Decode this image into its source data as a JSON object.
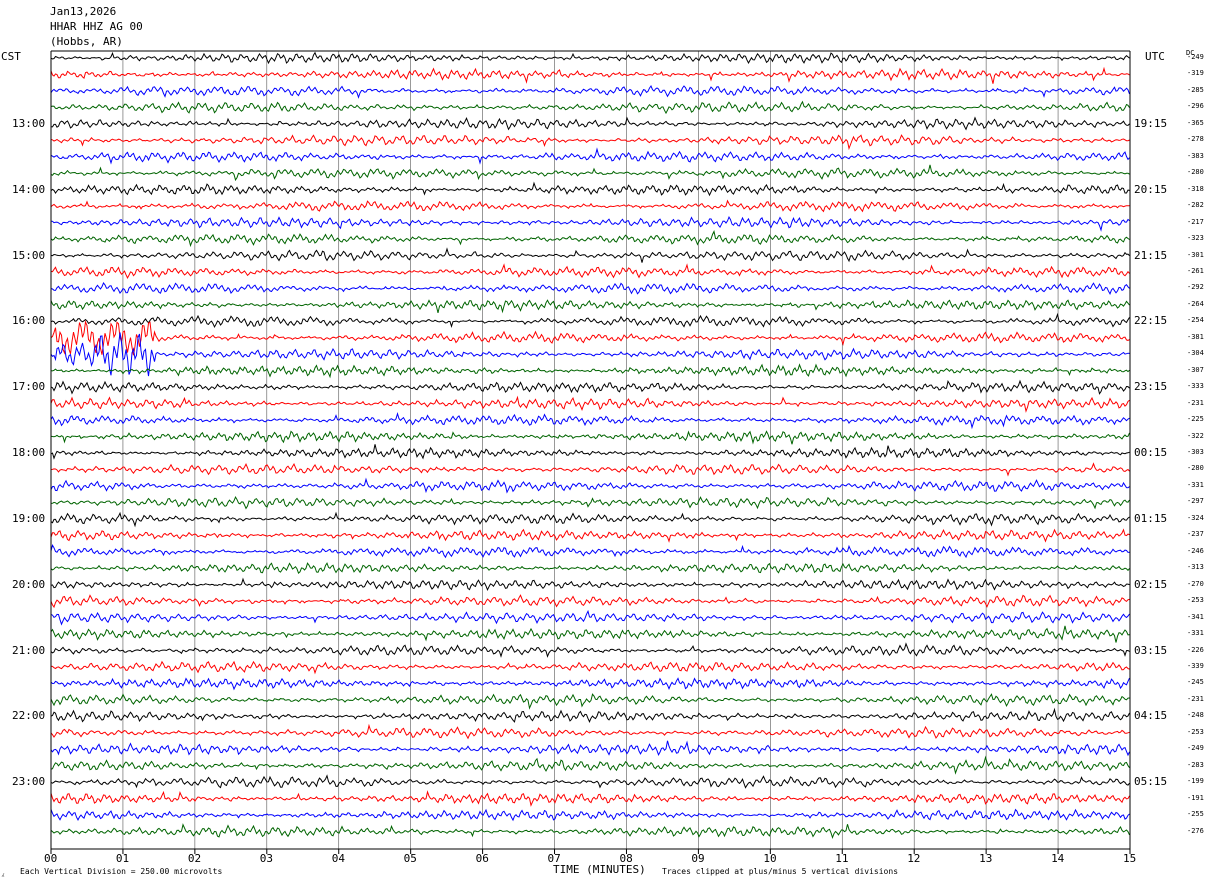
{
  "header": {
    "date": "Jan13,2026",
    "station": "HHAR HHZ AG 00",
    "location": "(Hobbs, AR)"
  },
  "chart_data": {
    "type": "line",
    "title": "",
    "xlabel": "TIME (MINUTES)",
    "ylabel_left": "CST",
    "ylabel_right": "UTC",
    "dc_label": "DC",
    "x_ticks": [
      "00",
      "01",
      "02",
      "03",
      "04",
      "05",
      "06",
      "07",
      "08",
      "09",
      "10",
      "11",
      "12",
      "13",
      "14",
      "15"
    ],
    "xlim": [
      0,
      15
    ],
    "row_minutes": 15,
    "trace_colors": [
      "#000000",
      "#ff0000",
      "#0000ff",
      "#006400"
    ],
    "cst_hour_labels": [
      "13:00",
      "14:00",
      "15:00",
      "16:00",
      "17:00",
      "18:00",
      "19:00",
      "20:00",
      "21:00",
      "22:00",
      "23:00"
    ],
    "utc_hour_labels": [
      "19:15",
      "20:15",
      "21:15",
      "22:15",
      "23:15",
      "00:15",
      "01:15",
      "02:15",
      "03:15",
      "04:15",
      "05:15"
    ],
    "dc_offsets": [
      -249,
      -319,
      -285,
      -296,
      -365,
      -278,
      -383,
      -280,
      -318,
      -282,
      -217,
      -323,
      -301,
      -261,
      -292,
      -264,
      -254,
      -381,
      -304,
      -307,
      -333,
      -231,
      -225,
      -322,
      -303,
      -280,
      -331,
      -297,
      -324,
      -237,
      -246,
      -313,
      -270,
      -253,
      -341,
      -331,
      -226,
      -339,
      -245,
      -231,
      -248,
      -253,
      -249,
      -283,
      -199,
      -191,
      -255,
      -276
    ],
    "event": {
      "description_none": "",
      "rows": [
        17,
        18
      ],
      "start_minute": 0.05,
      "end_minute": 1.45
    }
  },
  "footer": {
    "scale_note": "Each Vertical Division =  250.00 microvolts",
    "clip_note": "Traces clipped at plus/minus 5 vertical divisions"
  }
}
